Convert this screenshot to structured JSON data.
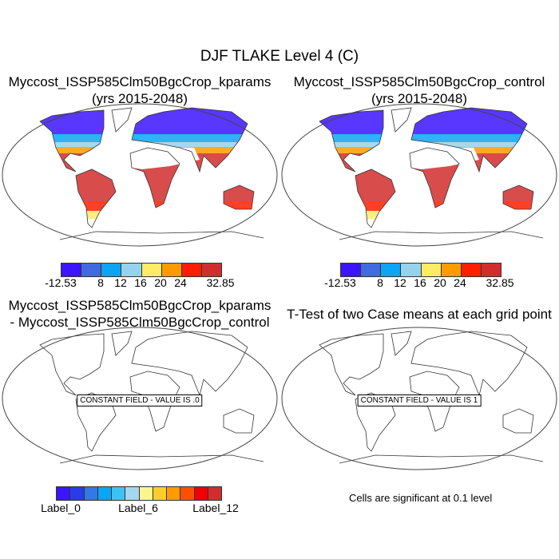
{
  "title": "DJF TLAKE Level 4 (C)",
  "panels": [
    {
      "title_line1": "Myccost_ISSP585Clm50BgcCrop_kparams",
      "title_line2": "(yrs 2015-2048)"
    },
    {
      "title_line1": "Myccost_ISSP585Clm50BgcCrop_control",
      "title_line2": "(yrs 2015-2048)"
    },
    {
      "title_line1": "Myccost_ISSP585Clm50BgcCrop_kparams",
      "title_line2": "- Myccost_ISSP585Clm50BgcCrop_control",
      "field_label": "CONSTANT FIELD - VALUE IS .0"
    },
    {
      "title_line1": "T-Test of two Case means at each grid point",
      "field_label": "CONSTANT FIELD - VALUE IS 1",
      "note": "Cells are significant at 0.1 level"
    }
  ],
  "colorbar_top": {
    "colors": [
      "#3c14ff",
      "#4169e1",
      "#0aa5f5",
      "#96d2eb",
      "#ffeb64",
      "#ff9b00",
      "#ff1e00",
      "#d22d2d"
    ],
    "labels": [
      "-12.53",
      "",
      "8",
      "12",
      "16",
      "20",
      "24",
      "",
      "32.85"
    ]
  },
  "colorbar_diff": {
    "colors": [
      "#3c14ff",
      "#2a3ce8",
      "#3278e6",
      "#0aa5f5",
      "#3cc3f5",
      "#a5d7f0",
      "#fff58c",
      "#ffcd28",
      "#ff9b00",
      "#ff5000",
      "#f00000",
      "#d22d2d"
    ],
    "labels": [
      "Label_0",
      "Label_6",
      "Label_12"
    ]
  }
}
